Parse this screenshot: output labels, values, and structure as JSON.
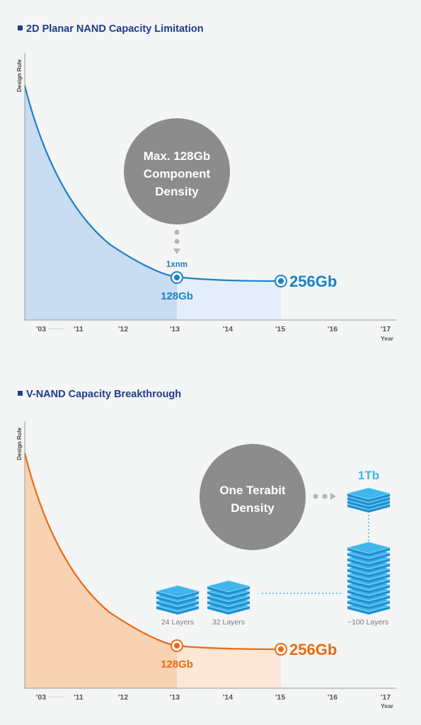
{
  "chart_data": [
    {
      "type": "area",
      "title": "2D Planar NAND Capacity Limitation",
      "ylabel": "Design Rule",
      "xlabel": "Year",
      "x_ticks": [
        "'03",
        "'11",
        "'12",
        "'13",
        "'14",
        "'15",
        "'16",
        "'17"
      ],
      "series": [
        {
          "values": [
            {
              "x": "'03",
              "y": 100
            },
            {
              "x": "'11",
              "y": 55
            },
            {
              "x": "'12",
              "y": 30
            },
            {
              "x": "'13",
              "y": 18
            },
            {
              "x": "'14",
              "y": 17
            },
            {
              "x": "'15",
              "y": 16
            }
          ]
        }
      ],
      "bubble": "Max. 128Gb Component Density",
      "callout_label": "1xnm",
      "points": [
        {
          "x": "'13",
          "label": "128Gb"
        },
        {
          "x": "'15",
          "label": "256Gb"
        }
      ],
      "colors": {
        "line": "#1a82c6",
        "fill": "#c8dcf2",
        "fill_light": "#e4eefa",
        "title": "#1f3c88",
        "bubble": "#8c8c8c"
      }
    },
    {
      "type": "area",
      "title": "V-NAND Capacity Breakthrough",
      "ylabel": "Design Rule",
      "xlabel": "Year",
      "x_ticks": [
        "'03",
        "'11",
        "'12",
        "'13",
        "'14",
        "'15",
        "'16",
        "'17"
      ],
      "series": [
        {
          "values": [
            {
              "x": "'03",
              "y": 100
            },
            {
              "x": "'11",
              "y": 55
            },
            {
              "x": "'12",
              "y": 30
            },
            {
              "x": "'13",
              "y": 18
            },
            {
              "x": "'14",
              "y": 17
            },
            {
              "x": "'15",
              "y": 16
            }
          ]
        }
      ],
      "bubble": "One Terabit Density",
      "points": [
        {
          "x": "'13",
          "label": "128Gb"
        },
        {
          "x": "'15",
          "label": "256Gb"
        }
      ],
      "stacks": [
        {
          "label": "24 Layers"
        },
        {
          "label": "32 Layers"
        },
        {
          "label": "~100 Layers"
        }
      ],
      "target_label": "1Tb",
      "colors": {
        "line": "#ea6a12",
        "fill": "#f8d3b3",
        "fill_light": "#fce6d6",
        "title": "#1f3c88",
        "bubble": "#8c8c8c",
        "stack": "#3fb6ec"
      }
    }
  ]
}
